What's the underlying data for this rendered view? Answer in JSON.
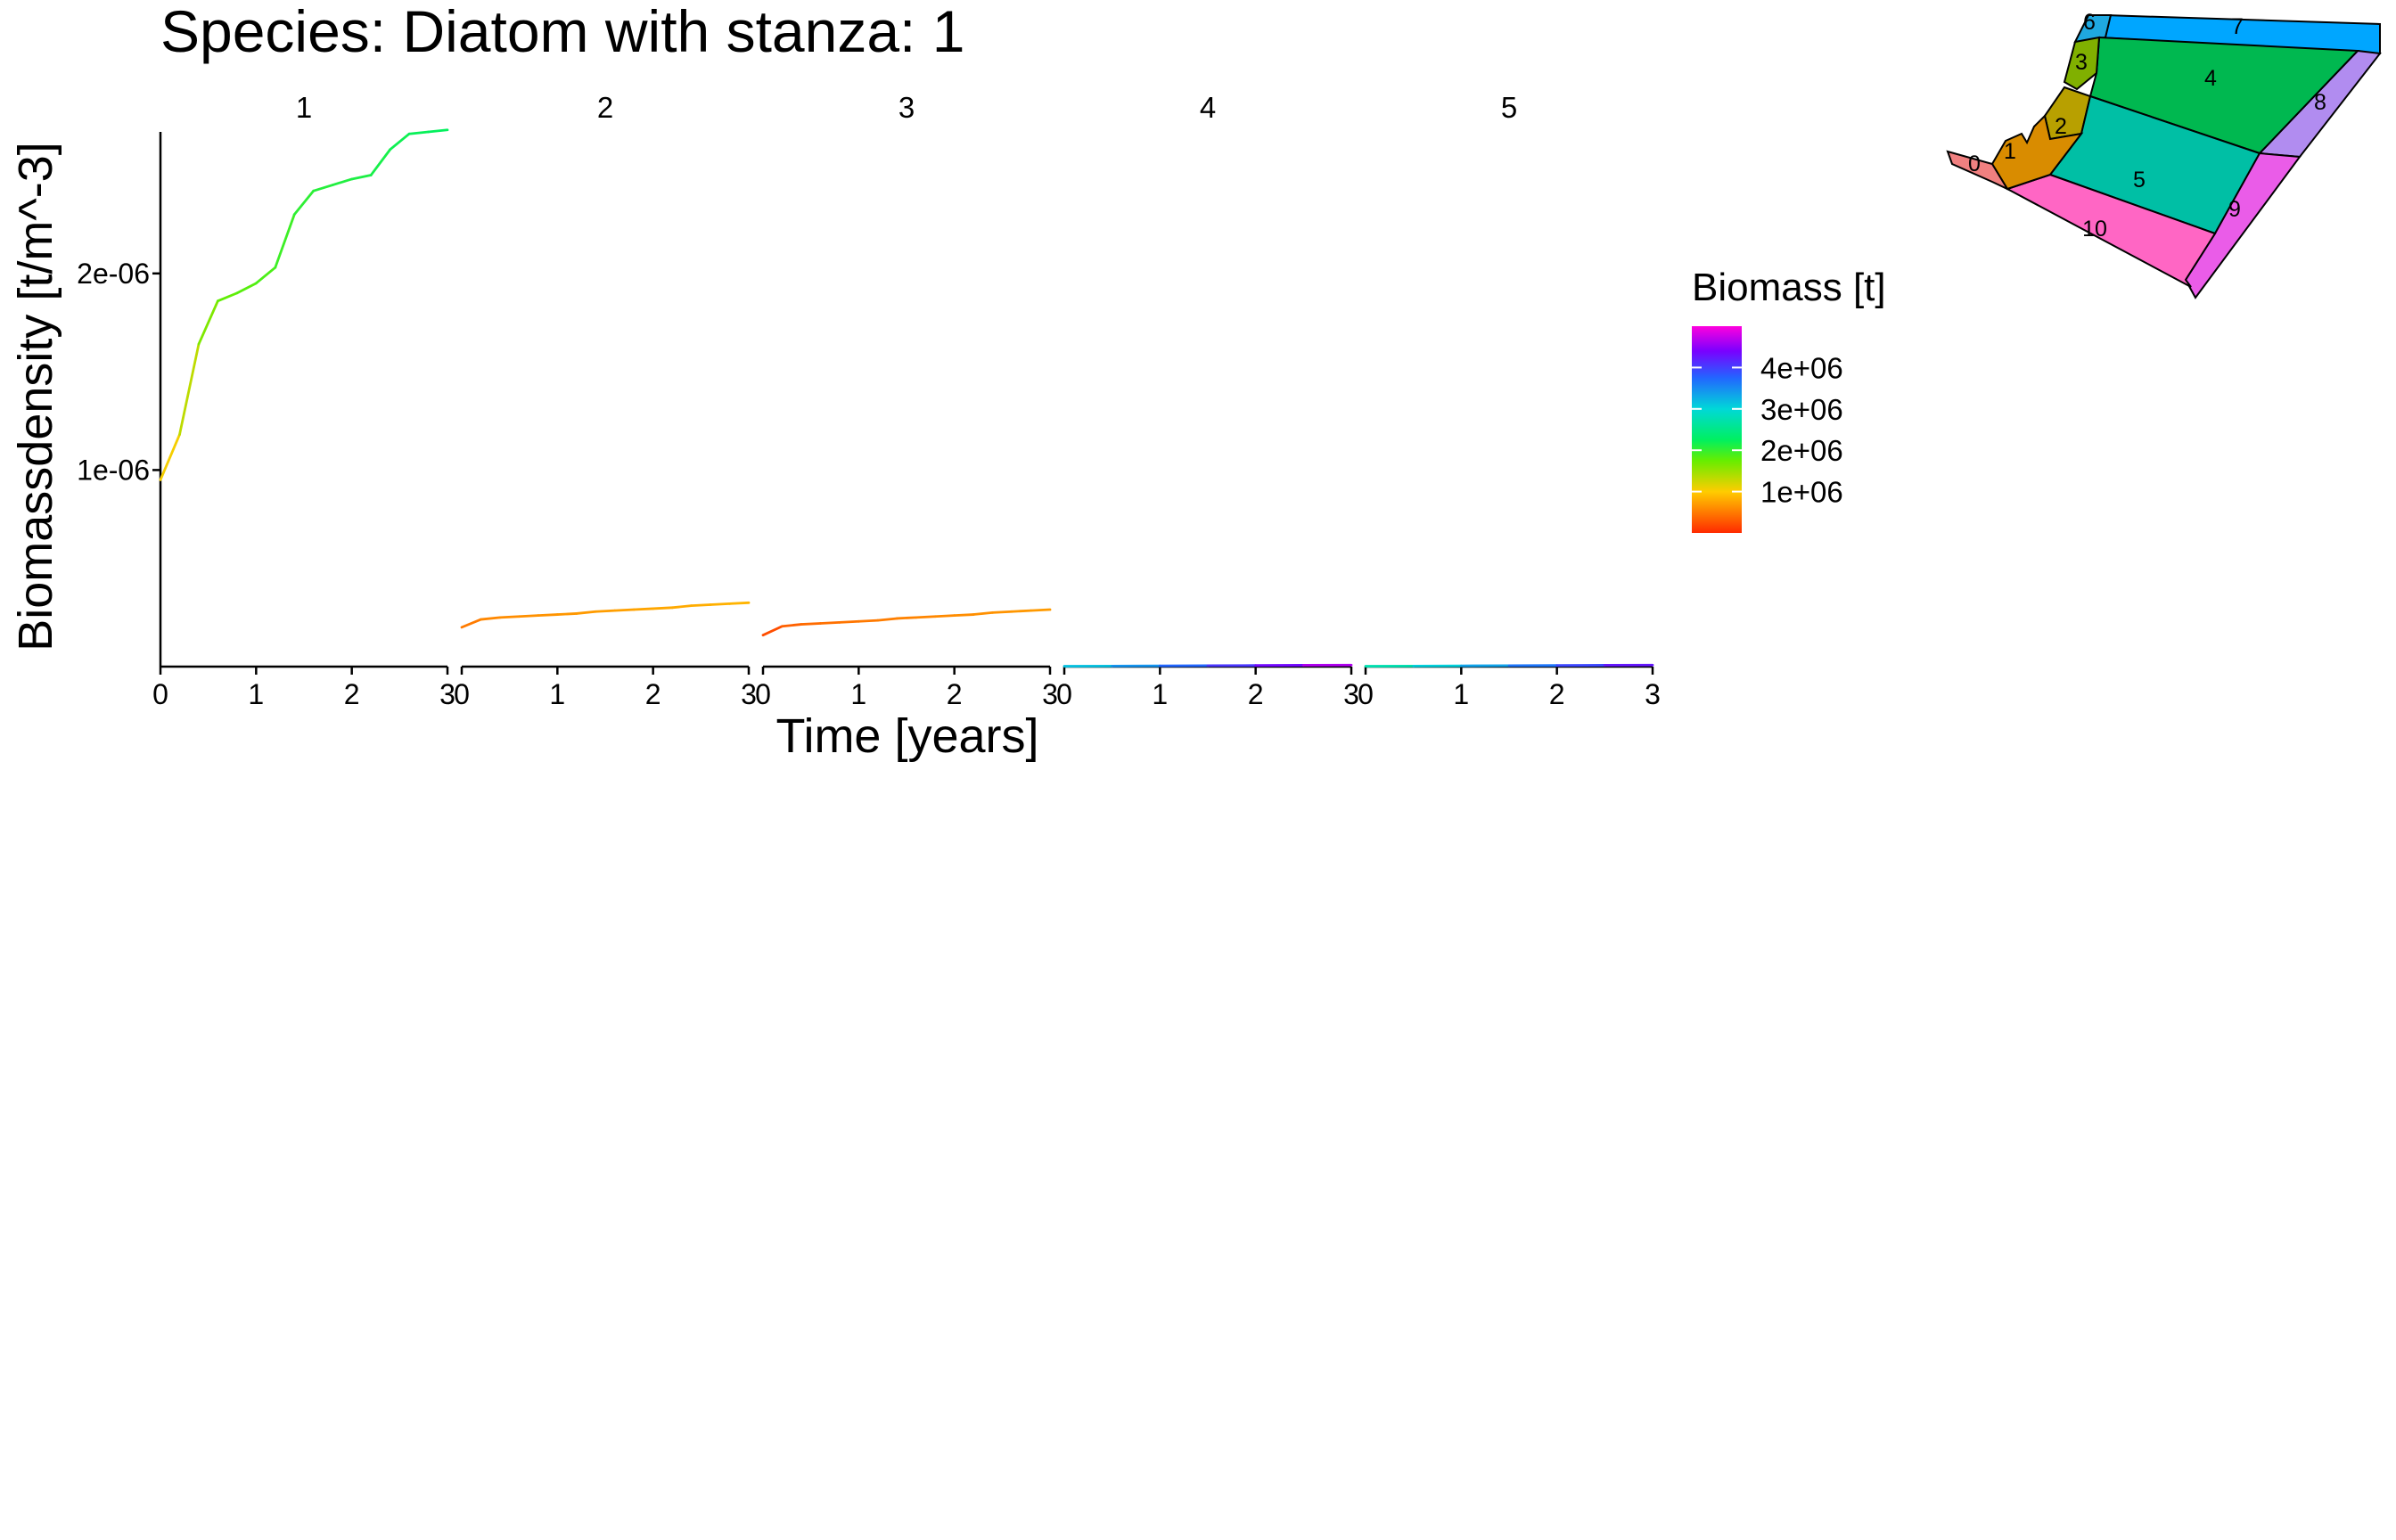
{
  "chart_data": {
    "type": "line",
    "title": "Species: Diatom with stanza: 1",
    "xlabel": "Time [years]",
    "ylabel": "Biomassdensity [t/m^-3]",
    "xlim": [
      0,
      3
    ],
    "ylim": [
      0,
      2.72e-06
    ],
    "x_ticks": [
      "0",
      "1",
      "2",
      "3"
    ],
    "y_ticks": [
      {
        "value": 1e-06,
        "label": "1e-06"
      },
      {
        "value": 2e-06,
        "label": "2e-06"
      }
    ],
    "grid": false,
    "facets": [
      {
        "label": "1",
        "x": [
          0,
          0.2,
          0.4,
          0.6,
          0.8,
          1.0,
          1.2,
          1.4,
          1.6,
          1.8,
          2.0,
          2.2,
          2.4,
          2.6,
          2.8,
          3.0
        ],
        "y": [
          9.5e-07,
          1.18e-06,
          1.64e-06,
          1.86e-06,
          1.9e-06,
          1.95e-06,
          2.03e-06,
          2.3e-06,
          2.42e-06,
          2.45e-06,
          2.48e-06,
          2.5e-06,
          2.63e-06,
          2.71e-06,
          2.72e-06,
          2.73e-06
        ],
        "biomass": [
          950000.0,
          1150000.0,
          1500000.0,
          1750000.0,
          1800000.0,
          1850000.0,
          1900000.0,
          2000000.0,
          2050000.0,
          2080000.0,
          2100000.0,
          2120000.0,
          2150000.0,
          2200000.0,
          2220000.0,
          2250000.0
        ]
      },
      {
        "label": "2",
        "x": [
          0,
          0.2,
          0.4,
          0.6,
          0.8,
          1.0,
          1.2,
          1.4,
          1.6,
          1.8,
          2.0,
          2.2,
          2.4,
          2.6,
          2.8,
          3.0
        ],
        "y": [
          2e-07,
          2.4e-07,
          2.5e-07,
          2.55e-07,
          2.6e-07,
          2.65e-07,
          2.7e-07,
          2.8e-07,
          2.85e-07,
          2.9e-07,
          2.95e-07,
          3e-07,
          3.1e-07,
          3.15e-07,
          3.2e-07,
          3.25e-07
        ],
        "biomass": [
          450000.0,
          550000.0,
          600000.0,
          620000.0,
          640000.0,
          660000.0,
          680000.0,
          700000.0,
          720000.0,
          740000.0,
          760000.0,
          780000.0,
          800000.0,
          820000.0,
          840000.0,
          860000.0
        ]
      },
      {
        "label": "3",
        "x": [
          0,
          0.2,
          0.4,
          0.6,
          0.8,
          1.0,
          1.2,
          1.4,
          1.6,
          1.8,
          2.0,
          2.2,
          2.4,
          2.6,
          2.8,
          3.0
        ],
        "y": [
          1.6e-07,
          2.05e-07,
          2.15e-07,
          2.2e-07,
          2.25e-07,
          2.3e-07,
          2.35e-07,
          2.45e-07,
          2.5e-07,
          2.55e-07,
          2.6e-07,
          2.65e-07,
          2.75e-07,
          2.8e-07,
          2.85e-07,
          2.9e-07
        ],
        "biomass": [
          150000.0,
          300000.0,
          380000.0,
          420000.0,
          450000.0,
          480000.0,
          500000.0,
          530000.0,
          560000.0,
          580000.0,
          600000.0,
          620000.0,
          640000.0,
          660000.0,
          680000.0,
          700000.0
        ]
      },
      {
        "label": "4",
        "x": [
          0,
          0.5,
          1.0,
          1.5,
          2.0,
          2.5,
          3.0
        ],
        "y": [
          2e-09,
          3e-09,
          4e-09,
          5e-09,
          6e-09,
          7e-09,
          8e-09
        ],
        "biomass": [
          3000000.0,
          3300000.0,
          3600000.0,
          3900000.0,
          4200000.0,
          4500000.0,
          4800000.0
        ]
      },
      {
        "label": "5",
        "x": [
          0,
          0.5,
          1.0,
          1.5,
          2.0,
          2.5,
          3.0
        ],
        "y": [
          2e-09,
          3e-09,
          4e-09,
          5e-09,
          6e-09,
          7e-09,
          8e-09
        ],
        "biomass": [
          2600000.0,
          2900000.0,
          3200000.0,
          3500000.0,
          3800000.0,
          4100000.0,
          4400000.0
        ]
      }
    ],
    "legend": {
      "title": "Biomass [t]",
      "placement": "right",
      "colormap": "rainbow red-yellow-green-cyan-blue-magenta",
      "breaks": [
        {
          "value": 1000000.0,
          "label": "1e+06"
        },
        {
          "value": 2000000.0,
          "label": "2e+06"
        },
        {
          "value": 3000000.0,
          "label": "3e+06"
        },
        {
          "value": 4000000.0,
          "label": "4e+06"
        }
      ],
      "range": [
        0,
        5000000.0
      ]
    },
    "inset_map": {
      "placement": "top-right",
      "regions": [
        {
          "label": "0",
          "color": "#f08080"
        },
        {
          "label": "1",
          "color": "#d98c00"
        },
        {
          "label": "2",
          "color": "#b8a000"
        },
        {
          "label": "3",
          "color": "#80b000"
        },
        {
          "label": "4",
          "color": "#00b850"
        },
        {
          "label": "5",
          "color": "#00bfa5"
        },
        {
          "label": "6",
          "color": "#1fa8e0"
        },
        {
          "label": "7",
          "color": "#00a6ff"
        },
        {
          "label": "8",
          "color": "#b18cf0"
        },
        {
          "label": "9",
          "color": "#ea5ce8"
        },
        {
          "label": "10",
          "color": "#ff66c4"
        }
      ]
    }
  }
}
